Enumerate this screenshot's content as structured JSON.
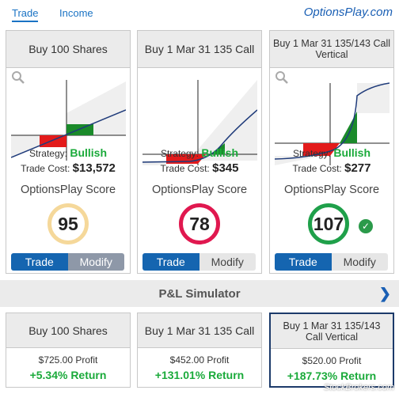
{
  "tabs": [
    {
      "label": "Trade",
      "active": true
    },
    {
      "label": "Income",
      "active": false
    }
  ],
  "brand": "OptionsPlay.com",
  "strategy_label": "Strategy:",
  "cost_label": "Trade Cost:",
  "score_label": "OptionsPlay Score",
  "trade_label": "Trade",
  "modify_label": "Modify",
  "cards": [
    {
      "title": "Buy 100 Shares",
      "strategy": "Bullish",
      "cost": "$13,572",
      "score": "95",
      "score_color": "#f5d89a",
      "modify_dark": true
    },
    {
      "title": "Buy 1 Mar 31 135 Call",
      "strategy": "Bullish",
      "cost": "$345",
      "score": "78",
      "score_color": "#e0184f",
      "modify_dark": false
    },
    {
      "title": "Buy 1 Mar 31 135/143 Call Vertical",
      "strategy": "Bullish",
      "cost": "$277",
      "score": "107",
      "score_color": "#1fa04a",
      "modify_dark": false,
      "check": true
    }
  ],
  "simulator": {
    "label": "P&L Simulator"
  },
  "pl_cards": [
    {
      "title": "Buy 100 Shares",
      "profit": "$725.00 Profit",
      "return": "+5.34% Return"
    },
    {
      "title": "Buy 1 Mar 31 135 Call",
      "profit": "$452.00 Profit",
      "return": "+131.01% Return"
    },
    {
      "title": "Buy 1 Mar 31 135/143 Call Vertical",
      "profit": "$520.00 Profit",
      "return": "+187.73% Return",
      "selected": true
    }
  ],
  "watermark": "StockBrokers.com",
  "colors": {
    "accent": "#1565b0",
    "bullish": "#1aaa3a",
    "loss": "#e31b1b",
    "gain": "#1a8a2a"
  }
}
